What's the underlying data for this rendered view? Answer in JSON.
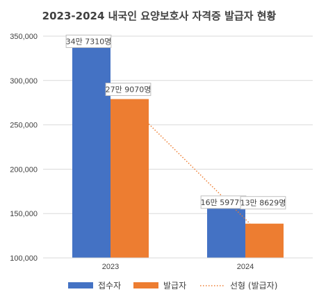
{
  "chart_data": {
    "type": "bar",
    "title": "2023-2024 내국인 요양보호사 자격증 발급자 현황",
    "categories": [
      "2023",
      "2024"
    ],
    "series": [
      {
        "name": "접수자",
        "values": [
          347310,
          165977
        ],
        "labels": [
          "34만 7310명",
          "16만 5977명"
        ],
        "color": "#4472C4"
      },
      {
        "name": "발급자",
        "values": [
          279070,
          138629
        ],
        "labels": [
          "27만 9070명",
          "13만 8629명"
        ],
        "color": "#ED7D31"
      }
    ],
    "trendline": {
      "name": "선형 (발급자)",
      "series": "발급자",
      "type": "linear",
      "color": "#ED7D31"
    },
    "ylim": [
      100000,
      350000
    ],
    "yticks": [
      100000,
      150000,
      200000,
      250000,
      300000,
      350000
    ],
    "ytick_labels": [
      "100,000",
      "150,000",
      "200,000",
      "250,000",
      "300,000",
      "350,000"
    ],
    "grid": true,
    "legend_position": "bottom"
  }
}
